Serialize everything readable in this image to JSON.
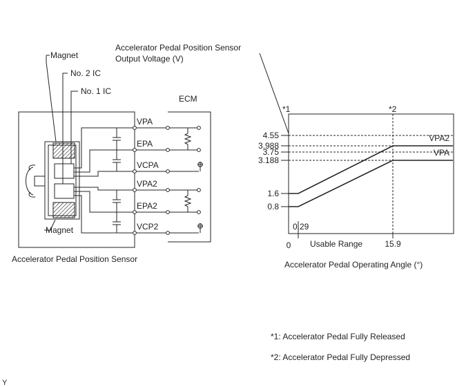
{
  "sensor": {
    "title": "Accelerator Pedal Position Sensor",
    "magnet_top": "Magnet",
    "magnet_bottom": "Magnet",
    "ic2": "No. 2 IC",
    "ic1": "No. 1 IC"
  },
  "ecm": {
    "title": "ECM"
  },
  "terminals": [
    "VPA",
    "EPA",
    "VCPA",
    "VPA2",
    "EPA2",
    "VCP2"
  ],
  "graph": {
    "title_line1": "Accelerator Pedal Position Sensor",
    "title_line2": "Output Voltage (V)",
    "marker1": "*1",
    "marker2": "*2",
    "usable_range": "Usable Range",
    "x_axis_label": "Accelerator Pedal Operating Angle (°)"
  },
  "notes": {
    "note1": "*1: Accelerator Pedal Fully Released",
    "note2": "*2: Accelerator Pedal Fully Depressed"
  },
  "corner_mark": "Y",
  "chart_data": {
    "type": "line",
    "xlabel": "Accelerator Pedal Operating Angle (°)",
    "ylabel": "Accelerator Pedal Position Sensor Output Voltage (V)",
    "x_ticks": [
      "0",
      "0.29",
      "15.9"
    ],
    "y_ticks": [
      "0.8",
      "1.6",
      "3.188",
      "3.75",
      "3.988",
      "4.55"
    ],
    "series": [
      {
        "name": "VPA2",
        "x": [
          0,
          0.29,
          15.9,
          19.5
        ],
        "y": [
          1.6,
          1.6,
          3.988,
          3.988
        ]
      },
      {
        "name": "VPA",
        "x": [
          0,
          0.29,
          15.9,
          19.5
        ],
        "y": [
          0.8,
          0.8,
          3.188,
          3.188
        ]
      }
    ]
  }
}
